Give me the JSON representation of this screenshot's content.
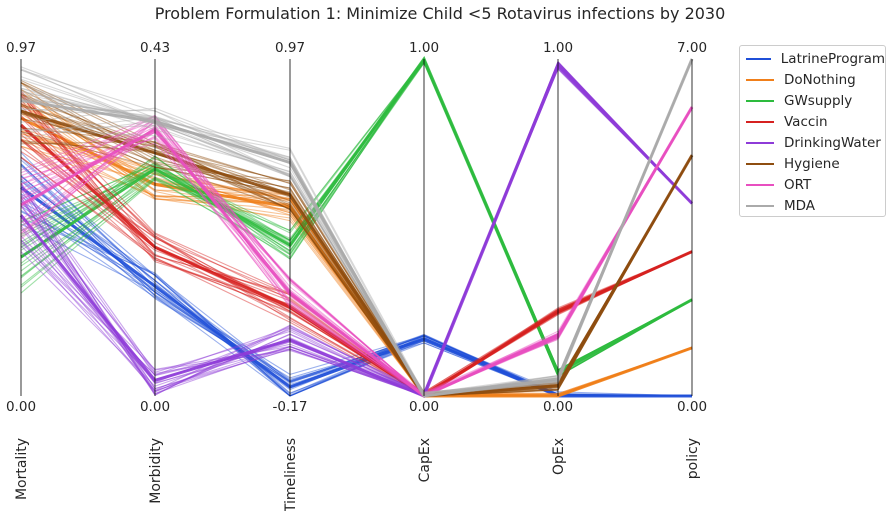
{
  "chart_data": {
    "type": "parallel_coordinates",
    "title": "Problem Formulation 1: Minimize Child <5 Rotavirus infections by 2030",
    "axes": [
      {
        "name": "Mortality",
        "max_label": "0.97",
        "min_label": "0.00",
        "range": [
          0.0,
          0.97
        ]
      },
      {
        "name": "Morbidity",
        "max_label": "0.43",
        "min_label": "0.00",
        "range": [
          0.0,
          0.43
        ]
      },
      {
        "name": "Timeliness",
        "max_label": "0.97",
        "min_label": "-0.17",
        "range": [
          -0.17,
          0.97
        ]
      },
      {
        "name": "CapEx",
        "max_label": "1.00",
        "min_label": "0.00",
        "range": [
          0.0,
          1.0
        ]
      },
      {
        "name": "OpEx",
        "max_label": "1.00",
        "min_label": "0.00",
        "range": [
          0.0,
          1.0
        ]
      },
      {
        "name": "policy",
        "max_label": "7.00",
        "min_label": "0.00",
        "range": [
          0.0,
          7.0
        ]
      }
    ],
    "legend_position": "outside-right",
    "grid": false,
    "series": [
      {
        "name": "LatrineProgram",
        "color": "#1f4fd8",
        "values": [
          0.6,
          0.14,
          -0.14,
          0.17,
          0.0,
          0.0
        ]
      },
      {
        "name": "DoNothing",
        "color": "#f07f1a",
        "values": [
          0.8,
          0.27,
          0.47,
          0.0,
          0.0,
          1.0
        ]
      },
      {
        "name": "GWsupply",
        "color": "#2dbb3e",
        "values": [
          0.4,
          0.29,
          0.34,
          1.0,
          0.07,
          2.0
        ]
      },
      {
        "name": "Vaccin",
        "color": "#d62120",
        "values": [
          0.78,
          0.19,
          0.13,
          0.0,
          0.25,
          3.0
        ]
      },
      {
        "name": "DrinkingWater",
        "color": "#8e3bd8",
        "values": [
          0.52,
          0.02,
          0.02,
          0.0,
          0.98,
          4.0
        ]
      },
      {
        "name": "Hygiene",
        "color": "#8e4d10",
        "values": [
          0.82,
          0.31,
          0.51,
          0.0,
          0.03,
          5.0
        ]
      },
      {
        "name": "ORT",
        "color": "#e84fc0",
        "values": [
          0.55,
          0.34,
          0.18,
          0.0,
          0.18,
          6.0
        ]
      },
      {
        "name": "MDA",
        "color": "#aaaaaa",
        "values": [
          0.85,
          0.35,
          0.62,
          0.0,
          0.05,
          7.0
        ]
      }
    ]
  }
}
